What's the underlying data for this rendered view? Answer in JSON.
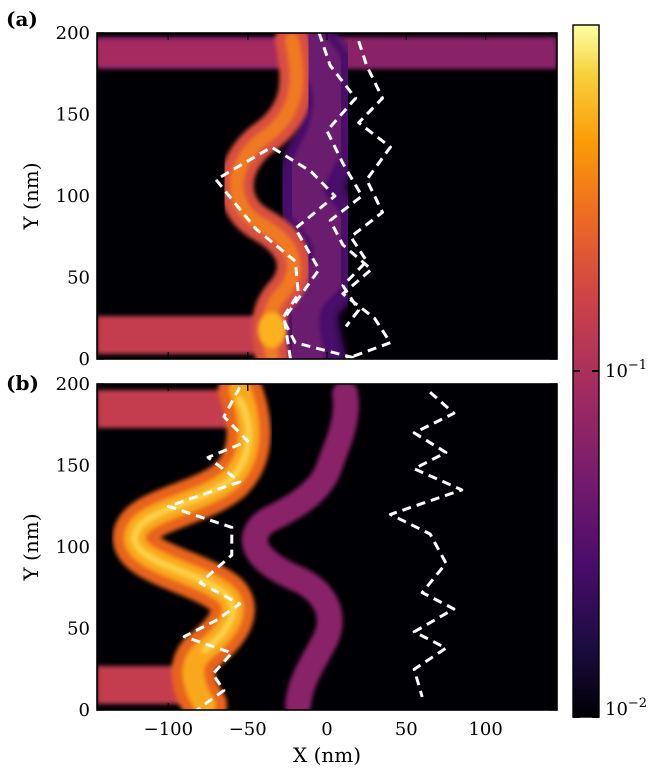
{
  "chart_data": {
    "type": "heatmap",
    "colormap": "inferno",
    "colorbar": {
      "scale": "log",
      "range": [
        0.01,
        1
      ],
      "tick_labels": [
        {
          "value": 0.1,
          "text": "10",
          "exp": "−1"
        },
        {
          "value": 0.01,
          "text": "10",
          "exp": "−2"
        }
      ]
    },
    "xlabel": "X (nm)",
    "xlim": [
      -145,
      145
    ],
    "x_ticks": [
      -100,
      -50,
      0,
      50,
      100
    ],
    "x_tick_labels": [
      "−100",
      "−50",
      "0",
      "50",
      "100"
    ],
    "panels": [
      {
        "label": "(a)",
        "ylabel": "Y (nm)",
        "ylim": [
          0,
          200
        ],
        "y_ticks": [
          0,
          50,
          100,
          150,
          200
        ],
        "y_tick_labels": [
          "0",
          "50",
          "100",
          "150",
          "200"
        ],
        "dashed_paths": [
          {
            "x": [
              -23,
              -27,
              -5,
              -20,
              5,
              -10,
              -35,
              -70,
              -45,
              -20,
              -18,
              -28,
              -20,
              20
            ],
            "y": [
              0,
              25,
              55,
              80,
              100,
              115,
              130,
              110,
              80,
              60,
              40,
              25,
              10,
              0
            ]
          },
          {
            "x": [
              -5,
              2,
              18,
              0,
              10,
              22,
              2,
              10,
              28,
              10,
              30,
              40,
              12
            ],
            "y": [
              200,
              180,
              160,
              140,
              120,
              100,
              85,
              70,
              55,
              40,
              25,
              10,
              0
            ]
          },
          {
            "x": [
              20,
              25,
              35,
              20,
              40,
              25,
              35,
              15,
              25,
              10,
              20,
              12
            ],
            "y": [
              195,
              180,
              160,
              145,
              130,
              110,
              90,
              75,
              60,
              45,
              30,
              20
            ]
          }
        ]
      },
      {
        "label": "(b)",
        "ylabel": "Y (nm)",
        "ylim": [
          0,
          200
        ],
        "y_ticks": [
          0,
          50,
          100,
          150,
          200
        ],
        "y_tick_labels": [
          "0",
          "50",
          "100",
          "150",
          "200"
        ],
        "dashed_paths": [
          {
            "x": [
              -55,
              -65,
              -50,
              -75,
              -55,
              -100,
              -60,
              -60,
              -80,
              -55,
              -70,
              -90,
              -60,
              -72,
              -65,
              -82
            ],
            "y": [
              198,
              180,
              165,
              155,
              140,
              125,
              112,
              95,
              78,
              65,
              55,
              45,
              35,
              22,
              12,
              0
            ]
          },
          {
            "x": [
              65,
              80,
              55,
              75,
              55,
              85,
              40,
              65,
              75,
              60,
              80,
              55,
              75,
              55,
              60
            ],
            "y": [
              195,
              182,
              170,
              158,
              148,
              135,
              120,
              108,
              90,
              72,
              62,
              48,
              38,
              25,
              8
            ]
          }
        ]
      }
    ]
  }
}
